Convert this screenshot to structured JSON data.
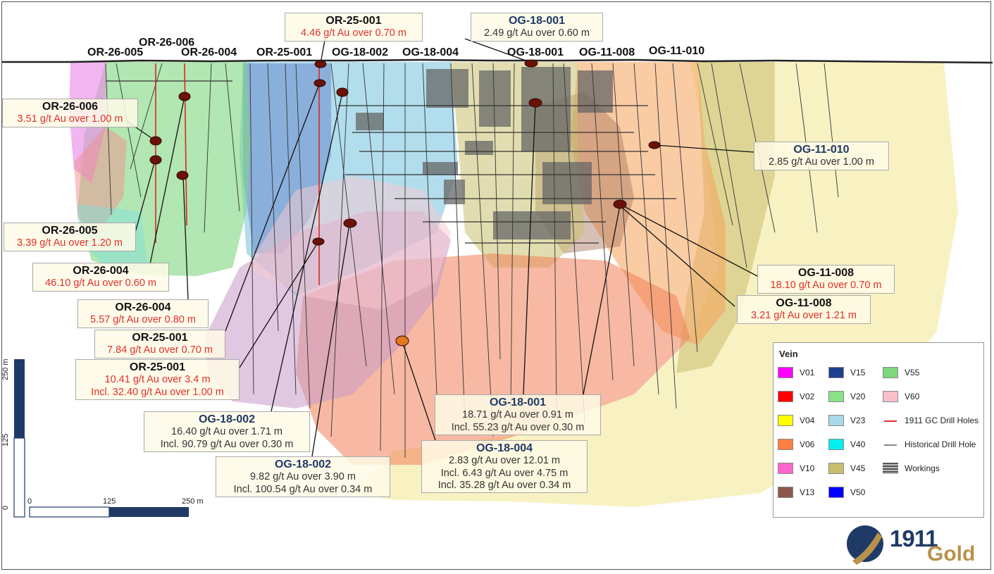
{
  "collars": [
    {
      "id": "c1",
      "label": "OR-26-005"
    },
    {
      "id": "c2",
      "label": "OR-26-006"
    },
    {
      "id": "c3",
      "label": "OR-26-004"
    },
    {
      "id": "c4",
      "label": "OR-25-001"
    },
    {
      "id": "c5",
      "label": "OG-18-002"
    },
    {
      "id": "c6",
      "label": "OG-18-004"
    },
    {
      "id": "c7",
      "label": "OG-18-001"
    },
    {
      "id": "c8",
      "label": "OG-11-008"
    },
    {
      "id": "c9",
      "label": "OG-11-010"
    }
  ],
  "callouts": {
    "or25_top": {
      "title": "OR-25-001",
      "lines": [
        "4.46 g/t Au over 0.70 m"
      ]
    },
    "og18_001_top": {
      "title": "OG-18-001",
      "lines": [
        "2.49 g/t Au over 0.60 m"
      ]
    },
    "or26_006": {
      "title": "OR-26-006",
      "lines": [
        "3.51 g/t Au over 1.00 m"
      ]
    },
    "og11_010": {
      "title": "OG-11-010",
      "lines": [
        "2.85 g/t Au over 1.00 m"
      ]
    },
    "or26_005": {
      "title": "OR-26-005",
      "lines": [
        "3.39 g/t Au over 1.20 m"
      ]
    },
    "or26_004_a": {
      "title": "OR-26-004",
      "lines": [
        "46.10 g/t Au over 0.60 m"
      ]
    },
    "og11_008_a": {
      "title": "OG-11-008",
      "lines": [
        "18.10 g/t Au over 0.70 m"
      ]
    },
    "og11_008_b": {
      "title": "OG-11-008",
      "lines": [
        "3.21 g/t Au over 1.21 m"
      ]
    },
    "or26_004_b": {
      "title": "OR-26-004",
      "lines": [
        "5.57 g/t Au over 0.80 m"
      ]
    },
    "or25_b": {
      "title": "OR-25-001",
      "lines": [
        "7.84 g/t Au over 0.70 m"
      ]
    },
    "or25_c": {
      "title": "OR-25-001",
      "lines": [
        "10.41 g/t Au over 3.4 m",
        "Incl. 32.40 g/t Au over 1.00 m"
      ]
    },
    "og18_001_b": {
      "title": "OG-18-001",
      "lines": [
        "18.71 g/t Au over 0.91 m",
        "Incl. 55.23 g/t Au over 0.30 m"
      ]
    },
    "og18_002_a": {
      "title": "OG-18-002",
      "lines": [
        "16.40 g/t Au over 1.71 m",
        "Incl. 90.79 g/t Au over 0.30 m"
      ]
    },
    "og18_004": {
      "title": "OG-18-004",
      "lines": [
        "2.83 g/t Au over 12.01 m",
        "Incl. 6.43 g/t Au over 4.75 m",
        "Incl. 35.28 g/t Au over 0.34 m"
      ]
    },
    "og18_002_b": {
      "title": "OG-18-002",
      "lines": [
        "9.82 g/t Au over 3.90 m",
        "Incl. 100.54 g/t Au over 0.34 m"
      ]
    }
  },
  "legend": {
    "title": "Vein",
    "items": [
      {
        "label": "V01",
        "color": "#ff00ff",
        "kind": "swatch"
      },
      {
        "label": "V02",
        "color": "#ff0000",
        "kind": "swatch"
      },
      {
        "label": "V04",
        "color": "#ffff00",
        "kind": "swatch"
      },
      {
        "label": "V06",
        "color": "#ff8040",
        "kind": "swatch"
      },
      {
        "label": "V10",
        "color": "#ff66cc",
        "kind": "swatch"
      },
      {
        "label": "V13",
        "color": "#8b5a4a",
        "kind": "swatch"
      },
      {
        "label": "V15",
        "color": "#1f3f8f",
        "kind": "swatch"
      },
      {
        "label": "V20",
        "color": "#88e388",
        "kind": "swatch"
      },
      {
        "label": "V23",
        "color": "#a9d9e8",
        "kind": "swatch"
      },
      {
        "label": "V40",
        "color": "#00f0f0",
        "kind": "swatch"
      },
      {
        "label": "V45",
        "color": "#c8be70",
        "kind": "swatch"
      },
      {
        "label": "V50",
        "color": "#0000ff",
        "kind": "swatch"
      },
      {
        "label": "V55",
        "color": "#7ed67e",
        "kind": "swatch"
      },
      {
        "label": "V60",
        "color": "#f9c0c8",
        "kind": "swatch"
      },
      {
        "label": "1911 GC Drill Holes",
        "color": "#e0302a",
        "kind": "line"
      },
      {
        "label": "Historical Drill Hole",
        "color": "#888888",
        "kind": "line"
      },
      {
        "label": "Workings",
        "color": "#777777",
        "kind": "workings"
      }
    ]
  },
  "scale_bar": {
    "labels": [
      "0",
      "125",
      "250 m"
    ],
    "vertical_labels": [
      "0",
      "125",
      "250 m"
    ]
  },
  "logo": {
    "text_top": "1911",
    "text_bottom": "Gold"
  },
  "colors": {
    "blue_title": "#1f3a66",
    "red_value": "#e0302a",
    "gold": "#b8924a"
  }
}
